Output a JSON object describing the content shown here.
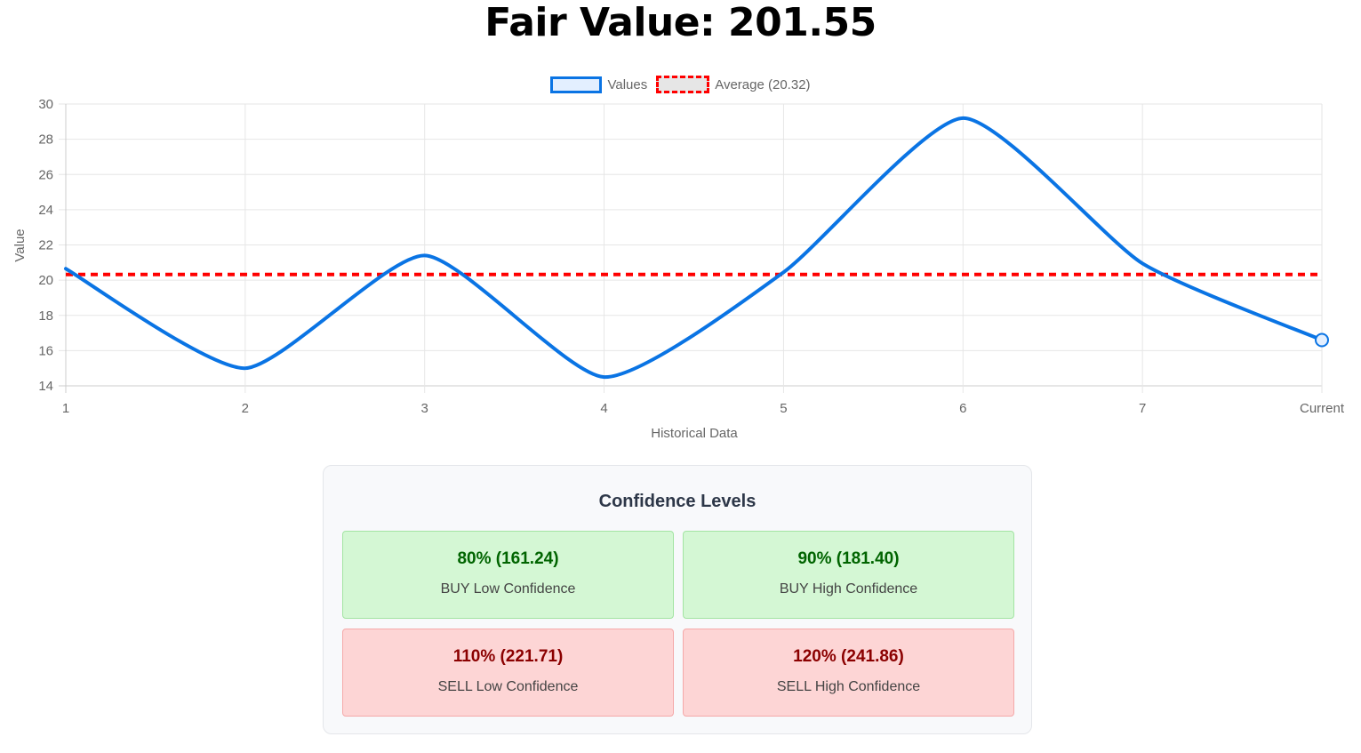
{
  "header": {
    "title": "Fair Value: 201.55"
  },
  "legend": {
    "items": [
      {
        "label": "Values",
        "color": "#0a74e4"
      },
      {
        "label": "Average (20.32)",
        "color": "#ff0000"
      }
    ]
  },
  "chart_data": {
    "type": "line",
    "title": "Fair Value: 201.55",
    "xlabel": "Historical Data",
    "ylabel": "Value",
    "categories": [
      "1",
      "2",
      "3",
      "4",
      "5",
      "6",
      "7",
      "Current"
    ],
    "series": [
      {
        "name": "Values",
        "values": [
          20.65,
          15.0,
          21.4,
          14.5,
          20.45,
          29.2,
          20.95,
          16.6
        ],
        "color": "#0a74e4",
        "style": "solid"
      },
      {
        "name": "Average (20.32)",
        "values": [
          20.32,
          20.32,
          20.32,
          20.32,
          20.32,
          20.32,
          20.32,
          20.32
        ],
        "color": "#ff0000",
        "style": "dashed"
      }
    ],
    "ylim": [
      14,
      30
    ],
    "yticks": [
      "30",
      "28",
      "26",
      "24",
      "22",
      "20",
      "18",
      "16",
      "14"
    ],
    "grid": true,
    "legend_position": "top",
    "highlighted_point": "Current"
  },
  "confidence": {
    "title": "Confidence Levels",
    "cards": [
      {
        "value": "80% (161.24)",
        "label": "BUY Low Confidence",
        "type": "buy"
      },
      {
        "value": "90% (181.40)",
        "label": "BUY High Confidence",
        "type": "buy"
      },
      {
        "value": "110% (221.71)",
        "label": "SELL Low Confidence",
        "type": "sell"
      },
      {
        "value": "120% (241.86)",
        "label": "SELL High Confidence",
        "type": "sell"
      }
    ]
  }
}
